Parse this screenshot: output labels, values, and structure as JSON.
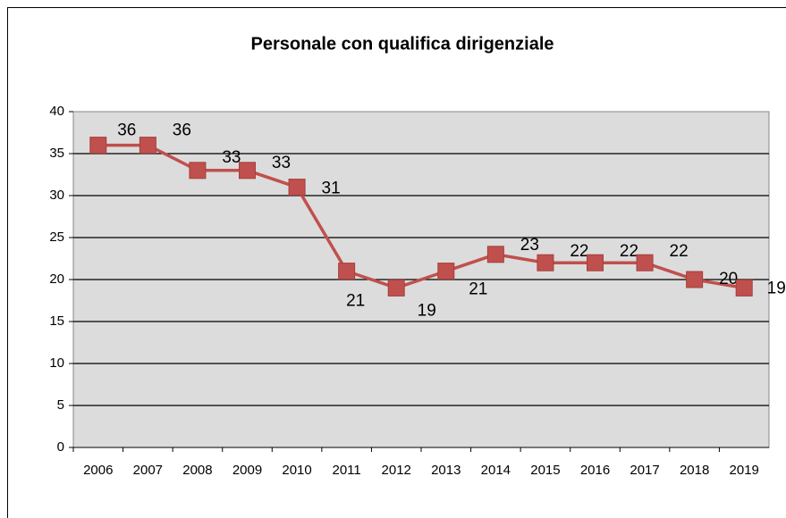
{
  "chart_data": {
    "type": "line",
    "title": "Personale con qualifica dirigenziale",
    "categories": [
      "2006",
      "2007",
      "2008",
      "2009",
      "2010",
      "2011",
      "2012",
      "2013",
      "2014",
      "2015",
      "2016",
      "2017",
      "2018",
      "2019"
    ],
    "series": [
      {
        "name": "Personale con qualifica dirigenziale",
        "color": "#c0504d",
        "values": [
          36,
          36,
          33,
          33,
          31,
          21,
          19,
          21,
          23,
          22,
          22,
          22,
          20,
          19
        ]
      }
    ],
    "ylim": [
      0,
      40
    ],
    "yticks": [
      0,
      5,
      10,
      15,
      20,
      25,
      30,
      35,
      40
    ],
    "grid": true
  }
}
